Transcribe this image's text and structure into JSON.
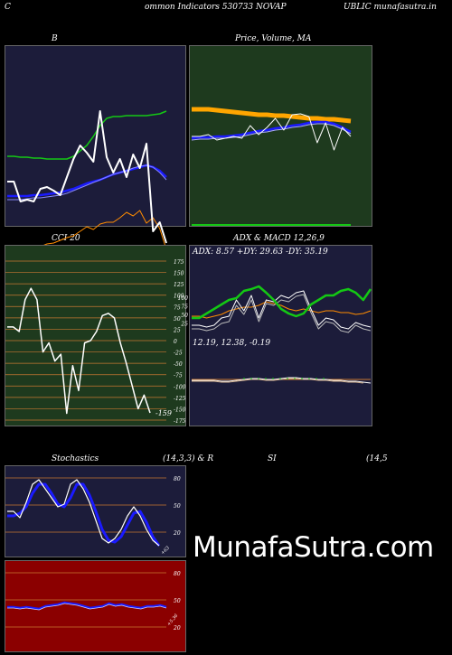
{
  "header": {
    "left": "C",
    "title": "ommon  Indicators 530733 NOVAP",
    "right": "UBLIC munafasutra.in"
  },
  "colors": {
    "navy": "#1c1c3a",
    "green_panel": "#1e3a1e",
    "red_panel": "#8b0000",
    "white": "#ffffff",
    "blue": "#1a1aff",
    "green": "#14c814",
    "orange": "#ff8c00"
  },
  "chart_data": [
    {
      "id": "bollinger",
      "type": "line",
      "title": "B",
      "series": [
        {
          "values": [
            150,
            150,
            172,
            170,
            172,
            158,
            156,
            160,
            165,
            145,
            125,
            110,
            118,
            128,
            72,
            123,
            140,
            125,
            145,
            120,
            135,
            108,
            205,
            195,
            218
          ]
        },
        {
          "values": [
            122,
            122,
            123,
            123,
            124,
            124,
            125,
            125,
            125,
            125,
            122,
            116,
            110,
            100,
            88,
            80,
            78,
            78,
            77,
            77,
            77,
            77,
            76,
            75,
            72
          ]
        },
        {
          "values": [
            166,
            166,
            166,
            166,
            165,
            165,
            164,
            163,
            162,
            160,
            158,
            155,
            152,
            150,
            148,
            145,
            142,
            140,
            138,
            136,
            134,
            132,
            134,
            138,
            145
          ]
        },
        {
          "values": [
            170,
            170,
            170,
            169,
            168,
            168,
            167,
            166,
            165,
            163,
            160,
            157,
            154,
            151,
            148,
            145,
            142,
            140,
            138,
            135,
            133,
            132,
            134,
            140,
            148
          ]
        },
        {
          "values": [
            225,
            226,
            228,
            226,
            223,
            222,
            219,
            218,
            215,
            212,
            210,
            205,
            200,
            203,
            197,
            195,
            195,
            190,
            184,
            188,
            182,
            196,
            190,
            202,
            225
          ]
        }
      ]
    },
    {
      "id": "price-ma",
      "type": "line",
      "title": "Price,  Volume,  MA",
      "series": [
        {
          "values": [
            150,
            150,
            148,
            154,
            152,
            150,
            152,
            138,
            148,
            140,
            130,
            143,
            126,
            125,
            128,
            157,
            135,
            165,
            140,
            150
          ]
        },
        {
          "values": [
            120,
            120,
            120,
            121,
            122,
            123,
            124,
            125,
            126,
            126,
            127,
            127,
            128,
            129,
            130,
            130,
            131,
            131,
            132,
            133
          ]
        },
        {
          "values": [
            152,
            151,
            151,
            150,
            150,
            149,
            148,
            146,
            144,
            143,
            141,
            140,
            138,
            137,
            135,
            134,
            134,
            136,
            140,
            145
          ]
        },
        {
          "values": [
            248,
            248,
            248,
            248,
            248,
            248,
            248,
            248,
            248,
            248,
            248,
            248,
            248,
            248,
            248,
            248,
            248,
            248,
            248,
            248
          ]
        }
      ]
    },
    {
      "id": "cci",
      "type": "line",
      "title": "CCI 20",
      "ylim": [
        -175,
        175
      ],
      "yticks": [
        "175",
        "150",
        "125",
        "100",
        "75",
        "50",
        "25",
        "0",
        "-25",
        "-50",
        "-75",
        "-100",
        "-125",
        "-150",
        "-175"
      ],
      "last_label": "-159",
      "values": [
        30,
        30,
        20,
        90,
        115,
        90,
        -25,
        -5,
        -45,
        -30,
        -160,
        -55,
        -110,
        -5,
        0,
        20,
        55,
        60,
        50,
        -5,
        -50,
        -100,
        -150,
        -120,
        -159
      ]
    },
    {
      "id": "adx",
      "type": "line",
      "title": "ADX  & MACD 12,26,9",
      "label": "ADX: 8.57 +DY: 29.63 -DY: 35.19",
      "yticks": [
        "100",
        "75",
        "50",
        "25"
      ]
    },
    {
      "id": "macd",
      "type": "line",
      "label": "12.19,  12.38,  -0.19"
    },
    {
      "id": "stochastics",
      "type": "line",
      "title": "Stochastics",
      "params": "(14,3,3) & R",
      "yticks": [
        "80",
        "50",
        "20"
      ],
      "last_label": "+63"
    },
    {
      "id": "rsi",
      "type": "line",
      "title": "SI",
      "params": "(14,5",
      "yticks": [
        "80",
        "50",
        "20"
      ],
      "last_label": "+5.36"
    }
  ],
  "watermark": "MunafaSutra.com"
}
